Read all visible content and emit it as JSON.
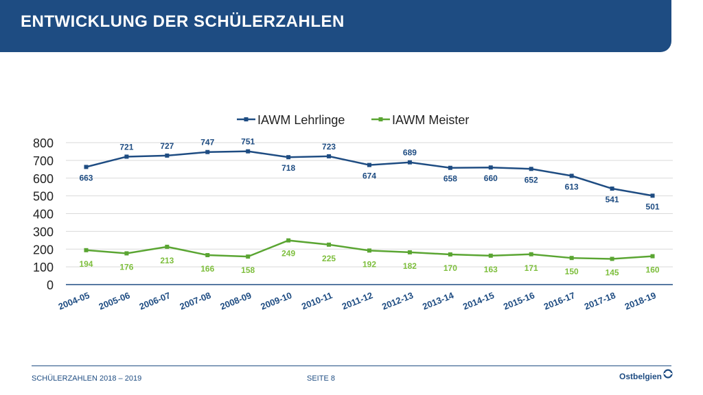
{
  "header": {
    "title": "ENTWICKLUNG DER SCHÜLERZAHLEN"
  },
  "footer": {
    "left": "SCHÜLERZAHLEN 2018 – 2019",
    "center": "SEITE 8",
    "brand": "Ostbelgien"
  },
  "colors": {
    "header_bg": "#1e4c82",
    "series_lehrlinge": "#1e4c82",
    "series_meister": "#5aa532",
    "label_meister": "#7dbe3c",
    "grid": "#d9d9d9",
    "axis": "#1e4c82"
  },
  "chart_data": {
    "type": "line",
    "title": "",
    "categories": [
      "2004-05",
      "2005-06",
      "2006-07",
      "2007-08",
      "2008-09",
      "2009-10",
      "2010-11",
      "2011-12",
      "2012-13",
      "2013-14",
      "2014-15",
      "2015-16",
      "2016-17",
      "2017-18",
      "2018-19"
    ],
    "series": [
      {
        "name": "IAWM Lehrlinge",
        "values": [
          663,
          721,
          727,
          747,
          751,
          718,
          723,
          674,
          689,
          658,
          660,
          652,
          613,
          541,
          501
        ]
      },
      {
        "name": "IAWM Meister",
        "values": [
          194,
          176,
          213,
          166,
          158,
          249,
          225,
          192,
          182,
          170,
          163,
          171,
          150,
          145,
          160
        ]
      }
    ],
    "yticks": [
      "0",
      "100",
      "200",
      "300",
      "400",
      "500",
      "600",
      "700",
      "800"
    ],
    "ylim": [
      0,
      800
    ],
    "grid": true,
    "legend": "top-center",
    "data_labels": true
  }
}
